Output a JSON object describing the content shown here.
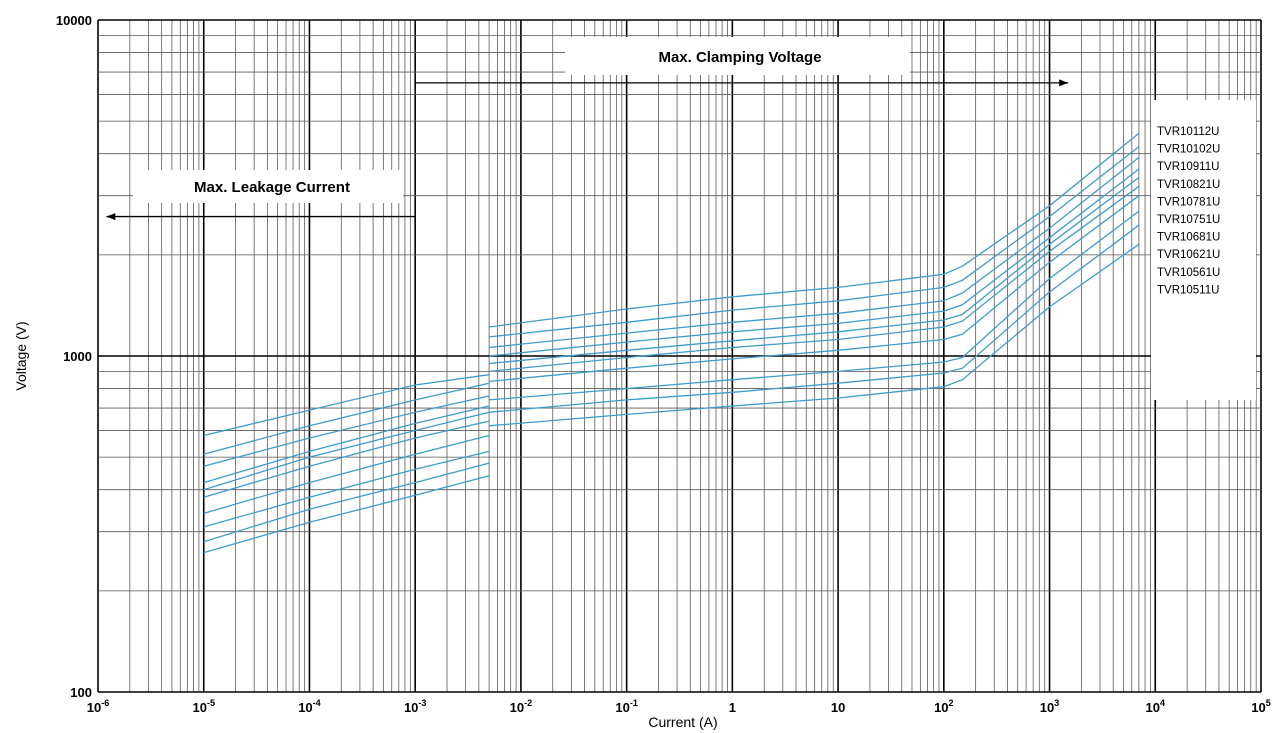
{
  "chart_data": {
    "type": "line",
    "title": "",
    "xlabel": "Current (A)",
    "ylabel": "Voltage (V)",
    "x_scale": "log",
    "y_scale": "log",
    "xlim": [
      1e-06,
      100000
    ],
    "ylim": [
      100,
      10000
    ],
    "grid": true,
    "line_color": "#3e9bcd",
    "x_ticks": [
      {
        "value": 1e-06,
        "base": "10",
        "exp": "-6"
      },
      {
        "value": 1e-05,
        "base": "10",
        "exp": "-5"
      },
      {
        "value": 0.0001,
        "base": "10",
        "exp": "-4"
      },
      {
        "value": 0.001,
        "base": "10",
        "exp": "-3"
      },
      {
        "value": 0.01,
        "base": "10",
        "exp": "-2"
      },
      {
        "value": 0.1,
        "base": "10",
        "exp": "-1"
      },
      {
        "value": 1,
        "base": "1",
        "exp": ""
      },
      {
        "value": 10,
        "base": "10",
        "exp": ""
      },
      {
        "value": 100,
        "base": "10",
        "exp": "2"
      },
      {
        "value": 1000,
        "base": "10",
        "exp": "3"
      },
      {
        "value": 10000,
        "base": "10",
        "exp": "4"
      },
      {
        "value": 100000,
        "base": "10",
        "exp": "5"
      }
    ],
    "y_ticks": [
      {
        "value": 100,
        "label": "100"
      },
      {
        "value": 1000,
        "label": "1000"
      },
      {
        "value": 10000,
        "label": "10000"
      }
    ],
    "annotations": {
      "clamping": {
        "text": "Max.  Clamping  Voltage",
        "arrow_from": 0.001,
        "arrow_to": 1500,
        "arrow_voltage": 6500
      },
      "leakage": {
        "text": "Max. Leakage Current",
        "arrow_from": 0.001,
        "arrow_to": 1.2e-06,
        "arrow_voltage": 2600
      }
    },
    "legend_position": "right",
    "series": [
      {
        "name": "TVR10112U",
        "leak": [
          [
            1e-05,
            580
          ],
          [
            0.0001,
            690
          ],
          [
            0.001,
            820
          ],
          [
            0.005,
            880
          ]
        ],
        "clamp": [
          [
            0.005,
            1220
          ],
          [
            0.1,
            1380
          ],
          [
            1,
            1500
          ],
          [
            10,
            1600
          ],
          [
            100,
            1750
          ],
          [
            150,
            1850
          ],
          [
            1000,
            2800
          ],
          [
            7000,
            4600
          ]
        ]
      },
      {
        "name": "TVR10102U",
        "leak": [
          [
            1e-05,
            510
          ],
          [
            0.0001,
            620
          ],
          [
            0.001,
            740
          ],
          [
            0.005,
            830
          ]
        ],
        "clamp": [
          [
            0.005,
            1140
          ],
          [
            0.1,
            1260
          ],
          [
            1,
            1370
          ],
          [
            10,
            1460
          ],
          [
            100,
            1600
          ],
          [
            150,
            1680
          ],
          [
            1000,
            2600
          ],
          [
            7000,
            4200
          ]
        ]
      },
      {
        "name": "TVR10911U",
        "leak": [
          [
            1e-05,
            470
          ],
          [
            0.0001,
            570
          ],
          [
            0.001,
            680
          ],
          [
            0.005,
            760
          ]
        ],
        "clamp": [
          [
            0.005,
            1060
          ],
          [
            0.1,
            1170
          ],
          [
            1,
            1260
          ],
          [
            10,
            1340
          ],
          [
            100,
            1460
          ],
          [
            150,
            1540
          ],
          [
            1000,
            2400
          ],
          [
            7000,
            3900
          ]
        ]
      },
      {
        "name": "TVR10821U",
        "leak": [
          [
            1e-05,
            420
          ],
          [
            0.0001,
            520
          ],
          [
            0.001,
            630
          ],
          [
            0.005,
            710
          ]
        ],
        "clamp": [
          [
            0.005,
            1000
          ],
          [
            0.1,
            1100
          ],
          [
            1,
            1180
          ],
          [
            10,
            1250
          ],
          [
            100,
            1360
          ],
          [
            150,
            1420
          ],
          [
            1000,
            2250
          ],
          [
            7000,
            3600
          ]
        ]
      },
      {
        "name": "TVR10781U",
        "leak": [
          [
            1e-05,
            400
          ],
          [
            0.0001,
            500
          ],
          [
            0.001,
            600
          ],
          [
            0.005,
            680
          ]
        ],
        "clamp": [
          [
            0.005,
            950
          ],
          [
            0.1,
            1040
          ],
          [
            1,
            1110
          ],
          [
            10,
            1180
          ],
          [
            100,
            1280
          ],
          [
            150,
            1330
          ],
          [
            1000,
            2150
          ],
          [
            7000,
            3400
          ]
        ]
      },
      {
        "name": "TVR10751U",
        "leak": [
          [
            1e-05,
            380
          ],
          [
            0.0001,
            470
          ],
          [
            0.001,
            570
          ],
          [
            0.005,
            640
          ]
        ],
        "clamp": [
          [
            0.005,
            900
          ],
          [
            0.1,
            990
          ],
          [
            1,
            1060
          ],
          [
            10,
            1120
          ],
          [
            100,
            1220
          ],
          [
            150,
            1270
          ],
          [
            1000,
            2050
          ],
          [
            7000,
            3200
          ]
        ]
      },
      {
        "name": "TVR10681U",
        "leak": [
          [
            1e-05,
            340
          ],
          [
            0.0001,
            420
          ],
          [
            0.001,
            510
          ],
          [
            0.005,
            580
          ]
        ],
        "clamp": [
          [
            0.005,
            840
          ],
          [
            0.1,
            920
          ],
          [
            1,
            980
          ],
          [
            10,
            1040
          ],
          [
            100,
            1120
          ],
          [
            150,
            1160
          ],
          [
            1000,
            1900
          ],
          [
            7000,
            3000
          ]
        ]
      },
      {
        "name": "TVR10621U",
        "leak": [
          [
            1e-05,
            310
          ],
          [
            0.0001,
            380
          ],
          [
            0.001,
            460
          ],
          [
            0.005,
            520
          ]
        ],
        "clamp": [
          [
            0.005,
            740
          ],
          [
            0.1,
            800
          ],
          [
            1,
            850
          ],
          [
            10,
            900
          ],
          [
            100,
            960
          ],
          [
            150,
            990
          ],
          [
            1000,
            1700
          ],
          [
            7000,
            2700
          ]
        ]
      },
      {
        "name": "TVR10561U",
        "leak": [
          [
            1e-05,
            280
          ],
          [
            0.0001,
            350
          ],
          [
            0.001,
            420
          ],
          [
            0.005,
            480
          ]
        ],
        "clamp": [
          [
            0.005,
            680
          ],
          [
            0.1,
            740
          ],
          [
            1,
            780
          ],
          [
            10,
            830
          ],
          [
            100,
            890
          ],
          [
            150,
            920
          ],
          [
            1000,
            1550
          ],
          [
            7000,
            2450
          ]
        ]
      },
      {
        "name": "TVR10511U",
        "leak": [
          [
            1e-05,
            260
          ],
          [
            0.0001,
            320
          ],
          [
            0.001,
            385
          ],
          [
            0.005,
            440
          ]
        ],
        "clamp": [
          [
            0.005,
            620
          ],
          [
            0.1,
            670
          ],
          [
            1,
            710
          ],
          [
            10,
            750
          ],
          [
            100,
            810
          ],
          [
            150,
            850
          ],
          [
            1000,
            1400
          ],
          [
            7000,
            2150
          ]
        ]
      }
    ]
  }
}
